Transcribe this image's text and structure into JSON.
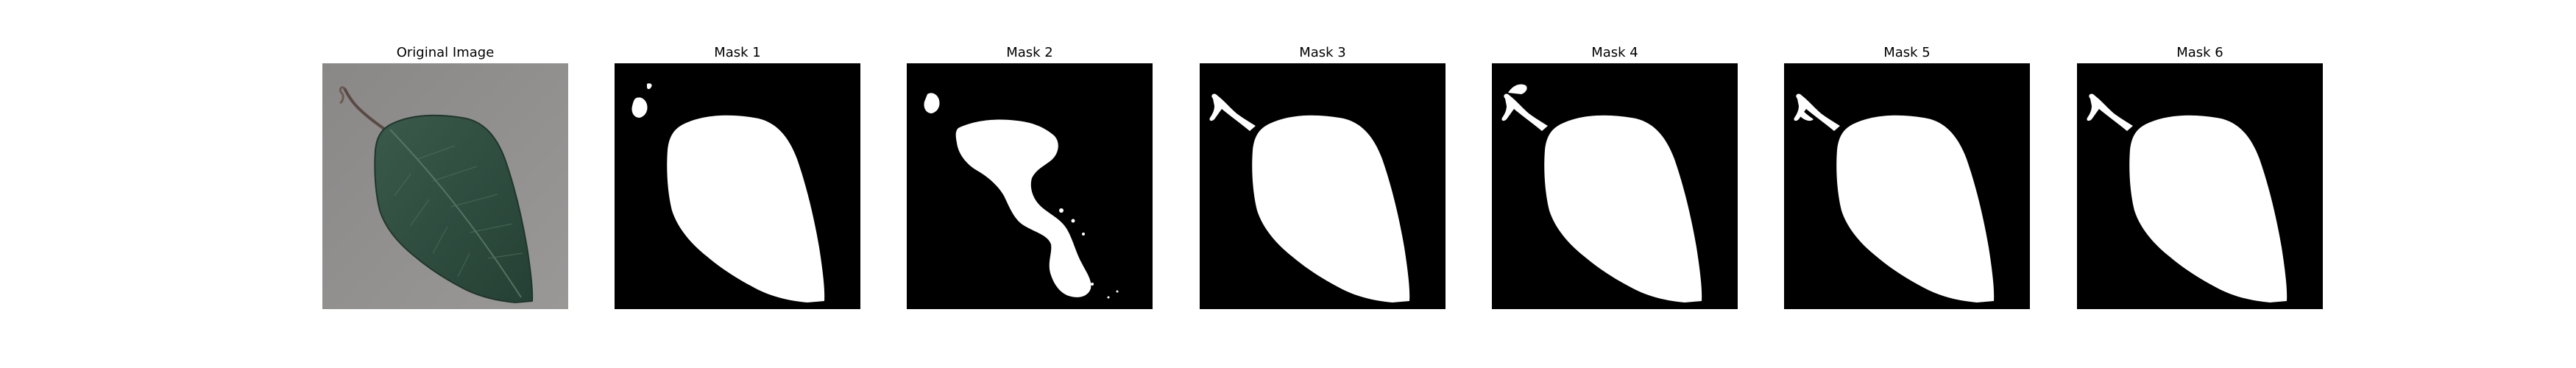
{
  "figure": {
    "panels": [
      {
        "title": "Original Image",
        "kind": "photo"
      },
      {
        "title": "Mask 1",
        "kind": "mask"
      },
      {
        "title": "Mask 2",
        "kind": "mask"
      },
      {
        "title": "Mask 3",
        "kind": "mask"
      },
      {
        "title": "Mask 4",
        "kind": "mask"
      },
      {
        "title": "Mask 5",
        "kind": "mask"
      },
      {
        "title": "Mask 6",
        "kind": "mask"
      }
    ],
    "colors": {
      "mask_background": "#000000",
      "mask_foreground": "#ffffff",
      "photo_background": "#8f8d8c",
      "leaf": "#2f4d3f"
    }
  }
}
